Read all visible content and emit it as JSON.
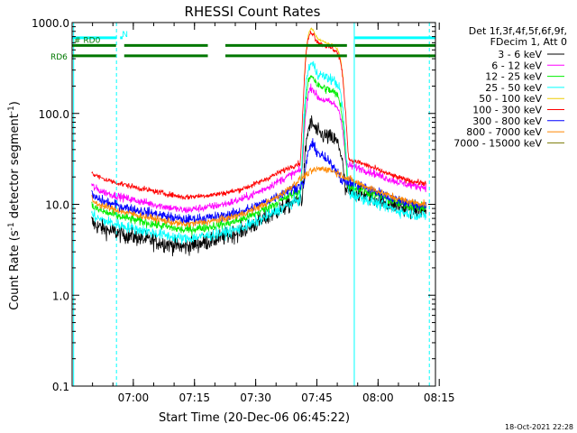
{
  "chart_data": {
    "type": "line",
    "title": "RHESSI Count Rates",
    "xlabel": "Start Time (20-Dec-06 06:45:22)",
    "ylabel_prefix": "Count Rate (s",
    "ylabel_sup": "-1",
    "ylabel_mid": " detector segment",
    "ylabel_sup2": "-1",
    "ylabel_suffix": ")",
    "yscale": "log",
    "ylim": [
      0.1,
      1000.0
    ],
    "xlim_minutes": [
      -0.37,
      88.7
    ],
    "y_ticks": [
      {
        "value": 0.1,
        "label": "0.1"
      },
      {
        "value": 1.0,
        "label": "1.0"
      },
      {
        "value": 10.0,
        "label": "10.0"
      },
      {
        "value": 100.0,
        "label": "100.0"
      },
      {
        "value": 1000.0,
        "label": "1000.0"
      }
    ],
    "x_ticks": [
      {
        "minute": 14.63,
        "label": "07:00"
      },
      {
        "minute": 29.63,
        "label": "07:15"
      },
      {
        "minute": 44.63,
        "label": "07:30"
      },
      {
        "minute": 59.63,
        "label": "07:45"
      },
      {
        "minute": 74.63,
        "label": "08:00"
      },
      {
        "minute": 89.63,
        "label": "08:15"
      }
    ],
    "x_minor_step_minutes": 5,
    "legend": {
      "position": "top-right",
      "header": [
        "Det 1f,3f,4f,5f,6f,9f,",
        "FDecim 1, Att 0"
      ],
      "entries": [
        {
          "label": "3 - 6 keV",
          "color": "#000000"
        },
        {
          "label": "6 - 12 keV",
          "color": "#ff00ff"
        },
        {
          "label": "12 - 25 keV",
          "color": "#00ee00"
        },
        {
          "label": "25 - 50 keV",
          "color": "#00ffff"
        },
        {
          "label": "50 - 100 keV",
          "color": "#eecc00"
        },
        {
          "label": "100 - 300 keV",
          "color": "#ff0000"
        },
        {
          "label": "300 - 800 keV",
          "color": "#0000ff"
        },
        {
          "label": "800 - 7000 keV",
          "color": "#ff8800"
        },
        {
          "label": "7000 - 15000 keV",
          "color": "#777700"
        }
      ]
    },
    "series": [
      {
        "name": "3 - 6 keV",
        "color": "#000000",
        "start": 6.5,
        "end": 8.0,
        "peak": 60,
        "noise": 0.22
      },
      {
        "name": "6 - 12 keV",
        "color": "#ff00ff",
        "start": 16.5,
        "end": 14.5,
        "peak": 150,
        "noise": 0.1
      },
      {
        "name": "12 - 25 keV",
        "color": "#00ee00",
        "start": 10.0,
        "end": 8.5,
        "peak": 210,
        "noise": 0.12
      },
      {
        "name": "25 - 50 keV",
        "color": "#00ffff",
        "start": 8.0,
        "end": 7.0,
        "peak": 285,
        "noise": 0.14
      },
      {
        "name": "50 - 100 keV",
        "color": "#eecc00",
        "start": 0,
        "end": 0,
        "peak": 700,
        "noise": 0.03
      },
      {
        "name": "100 - 300 keV",
        "color": "#ff0000",
        "start": 23.0,
        "end": 16.0,
        "peak": 630,
        "noise": 0.07
      },
      {
        "name": "300 - 800 keV",
        "color": "#0000ff",
        "start": 13.0,
        "end": 9.0,
        "peak": 30,
        "noise": 0.13
      },
      {
        "name": "800 - 7000 keV",
        "color": "#ff8800",
        "start": 11.5,
        "end": 9.5,
        "peak": 19,
        "noise": 0.09
      },
      {
        "name": "7000 - 15000 keV",
        "color": "#777700",
        "start": 0,
        "end": 0,
        "peak": 0,
        "noise": 0
      }
    ],
    "flag_bars": [
      {
        "label": "N",
        "color": "#00ffff",
        "segments": [
          [
            -0.37,
            10.5
          ],
          [
            11.4,
            12.0
          ],
          [
            68.9,
            88.7
          ]
        ],
        "y_value": 680
      },
      {
        "label": "RD0",
        "color": "#007700",
        "segments": [
          [
            -0.37,
            10.4
          ],
          [
            12.4,
            32.9
          ],
          [
            37.2,
            67.0
          ],
          [
            69.0,
            88.7
          ]
        ],
        "y_value": 560
      },
      {
        "label": "RD6",
        "color": "#007700",
        "segments": [
          [
            -0.37,
            10.4
          ],
          [
            12.4,
            32.9
          ],
          [
            37.2,
            67.0
          ],
          [
            69.0,
            88.7
          ]
        ],
        "y_value": 430
      }
    ],
    "vertical_lines": [
      {
        "minute": 0.0,
        "color": "#00ffff",
        "style": "solid"
      },
      {
        "minute": 10.5,
        "color": "#00ffff",
        "style": "dashed"
      },
      {
        "minute": 68.8,
        "color": "#00ffff",
        "style": "solid"
      },
      {
        "minute": 87.2,
        "color": "#00ffff",
        "style": "dashed"
      }
    ],
    "footer_timestamp": "18-Oct-2021 22:28"
  }
}
